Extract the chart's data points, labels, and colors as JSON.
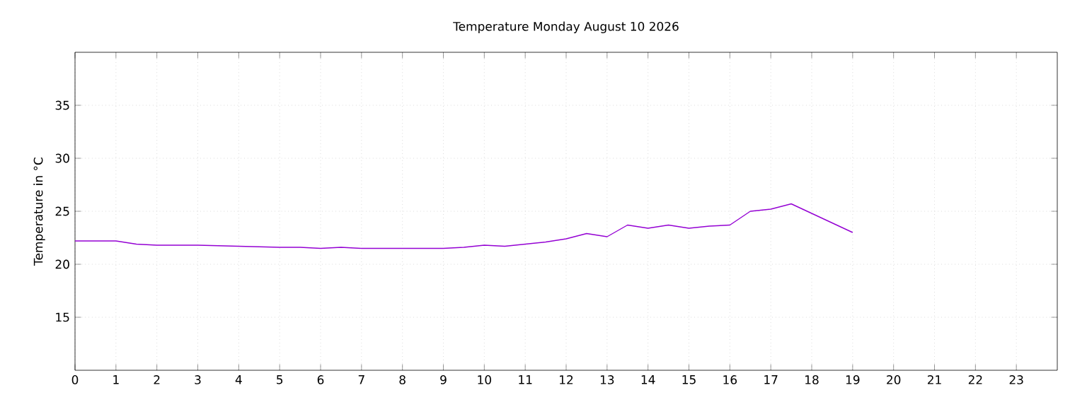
{
  "chart_data": {
    "type": "line",
    "title": "Temperature Monday August 10 2026",
    "ylabel": "Temperature in °C",
    "x": [
      0,
      1,
      1.5,
      2,
      3,
      4,
      5,
      5.5,
      6,
      6.5,
      7,
      8,
      9,
      9.5,
      10,
      10.5,
      11,
      11.5,
      12,
      12.5,
      13,
      13.5,
      14,
      14.5,
      15,
      15.5,
      16,
      16.5,
      17,
      17.5,
      19
    ],
    "series": [
      {
        "color": "#9400d3",
        "values": [
          22.2,
          22.2,
          21.9,
          21.8,
          21.8,
          21.7,
          21.6,
          21.6,
          21.5,
          21.6,
          21.5,
          21.5,
          21.5,
          21.6,
          21.8,
          21.7,
          21.9,
          22.1,
          22.4,
          22.9,
          22.6,
          23.7,
          23.4,
          23.7,
          23.4,
          23.6,
          23.7,
          25.0,
          25.2,
          25.7,
          23.0
        ]
      }
    ],
    "xlim": [
      0,
      24
    ],
    "ylim": [
      10,
      40
    ],
    "xticks": [
      0,
      1,
      2,
      3,
      4,
      5,
      6,
      7,
      8,
      9,
      10,
      11,
      12,
      13,
      14,
      15,
      16,
      17,
      18,
      19,
      20,
      21,
      22,
      23
    ],
    "yticks": [
      15,
      20,
      25,
      30,
      35
    ],
    "grid": true,
    "marker": "none",
    "line_style": "solid"
  }
}
